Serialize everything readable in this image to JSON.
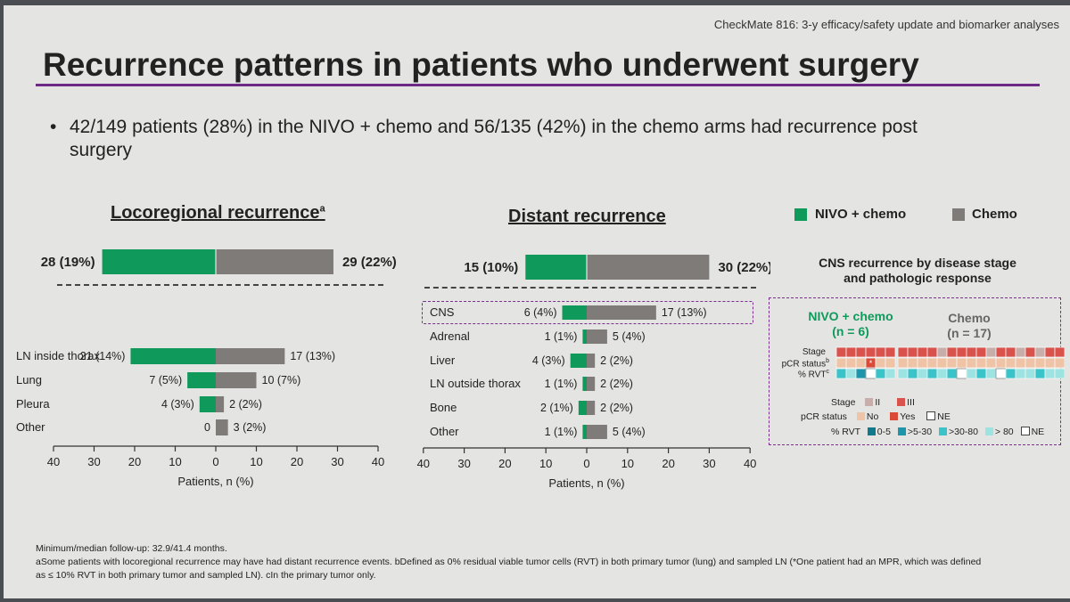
{
  "header_note": "CheckMate 816: 3-y efficacy/safety update and biomarker analyses",
  "title": "Recurrence patterns in patients who underwent surgery",
  "bullet": "42/149 patients (28%) in the NIVO + chemo and 56/135 (42%) in the chemo arms had recurrence post surgery",
  "legend": {
    "nivo": "NIVO + chemo",
    "chemo": "Chemo"
  },
  "colors": {
    "nivo": "#0f9a5b",
    "chemo": "#7f7b79",
    "accent": "#6d2b86",
    "stage2": "#c8aeab",
    "stage3": "#d9534c",
    "pcr_no": "#efc3a5",
    "pcr_yes": "#d94a38",
    "rvt_0_5": "#12788c",
    "rvt_5_30": "#1f95ac",
    "rvt_30_80": "#3ac3c9",
    "rvt_80": "#9ce3e2",
    "ne": "#ffffff"
  },
  "chart_data": [
    {
      "type": "bar",
      "title": "Locoregional recurrence",
      "title_sup": "a",
      "xlabel": "Patients, n (%)",
      "xlim": [
        -40,
        40
      ],
      "ticks": [
        "40",
        "30",
        "20",
        "10",
        "0",
        "10",
        "20",
        "30",
        "40"
      ],
      "total": {
        "nivo": 28,
        "nivo_label": "28 (19%)",
        "chemo": 29,
        "chemo_label": "29 (22%)"
      },
      "categories": [
        "LN inside thorax",
        "Lung",
        "Pleura",
        "Other"
      ],
      "series": [
        {
          "name": "NIVO + chemo",
          "values": [
            21,
            7,
            4,
            0
          ],
          "labels": [
            "21 (14%)",
            "7 (5%)",
            "4 (3%)",
            "0"
          ]
        },
        {
          "name": "Chemo",
          "values": [
            17,
            10,
            2,
            3
          ],
          "labels": [
            "17 (13%)",
            "10 (7%)",
            "2 (2%)",
            "3 (2%)"
          ]
        }
      ]
    },
    {
      "type": "bar",
      "title": "Distant recurrence",
      "xlabel": "Patients, n (%)",
      "xlim": [
        -40,
        40
      ],
      "ticks": [
        "40",
        "30",
        "20",
        "10",
        "0",
        "10",
        "20",
        "30",
        "40"
      ],
      "total": {
        "nivo": 15,
        "nivo_label": "15 (10%)",
        "chemo": 30,
        "chemo_label": "30 (22%)"
      },
      "categories": [
        "CNS",
        "Adrenal",
        "Liver",
        "LN outside thorax",
        "Bone",
        "Other"
      ],
      "series": [
        {
          "name": "NIVO + chemo",
          "values": [
            6,
            1,
            4,
            1,
            2,
            1
          ],
          "labels": [
            "6 (4%)",
            "1 (1%)",
            "4 (3%)",
            "1 (1%)",
            "2 (1%)",
            "1 (1%)"
          ]
        },
        {
          "name": "Chemo",
          "values": [
            17,
            5,
            2,
            2,
            2,
            5
          ],
          "labels": [
            "17 (13%)",
            "5 (4%)",
            "2 (2%)",
            "2 (2%)",
            "2 (2%)",
            "5 (4%)"
          ]
        }
      ]
    },
    {
      "type": "heatmap",
      "title": "CNS recurrence by disease stage and pathologic response",
      "groups": [
        {
          "name": "NIVO + chemo",
          "n_label": "(n = 6)"
        },
        {
          "name": "Chemo",
          "n_label": "(n = 17)"
        }
      ],
      "row_labels": [
        "Stage",
        "pCR status",
        "% RVT"
      ],
      "row_sups": [
        "",
        "b",
        "c"
      ],
      "nivo": {
        "stage": [
          "III",
          "III",
          "III",
          "III",
          "III",
          "III"
        ],
        "pcr": [
          "No",
          "No",
          "No",
          "Yes*",
          "No",
          "No"
        ],
        "rvt": [
          "30-80",
          ">80",
          "5-30",
          "NE",
          "30-80",
          ">80"
        ]
      },
      "chemo": {
        "stage": [
          "III",
          "III",
          "III",
          "III",
          "II",
          "III",
          "III",
          "III",
          "III",
          "II",
          "III",
          "III",
          "II",
          "III",
          "II",
          "III",
          "III"
        ],
        "pcr": [
          "No",
          "No",
          "No",
          "No",
          "No",
          "No",
          "No",
          "No",
          "No",
          "No",
          "No",
          "No",
          "No",
          "No",
          "No",
          "No",
          "No"
        ],
        "rvt": [
          ">80",
          "30-80",
          ">80",
          "30-80",
          ">80",
          "30-80",
          "NE",
          ">80",
          "30-80",
          ">80",
          "NE",
          "30-80",
          ">80",
          ">80",
          "30-80",
          ">80",
          ">80"
        ]
      },
      "legend": {
        "stage_label": "Stage",
        "stage_ii": "II",
        "stage_iii": "III",
        "pcr_label": "pCR status",
        "pcr_no": "No",
        "pcr_yes": "Yes",
        "pcr_ne": "NE",
        "rvt_label": "% RVT",
        "rvt_0_5": "0-5",
        "rvt_5_30": ">5-30",
        "rvt_30_80": ">30-80",
        "rvt_80": "> 80",
        "rvt_ne": "NE"
      }
    }
  ],
  "footnotes": {
    "line1": "Minimum/median follow-up: 32.9/41.4 months.",
    "line2": "aSome patients with locoregional recurrence may have had distant recurrence events. bDefined as 0% residual viable tumor cells (RVT) in both primary tumor (lung) and sampled LN (*One patient had an MPR, which was defined",
    "line3": "as ≤ 10% RVT in both primary tumor and sampled LN). cIn the primary tumor only."
  }
}
